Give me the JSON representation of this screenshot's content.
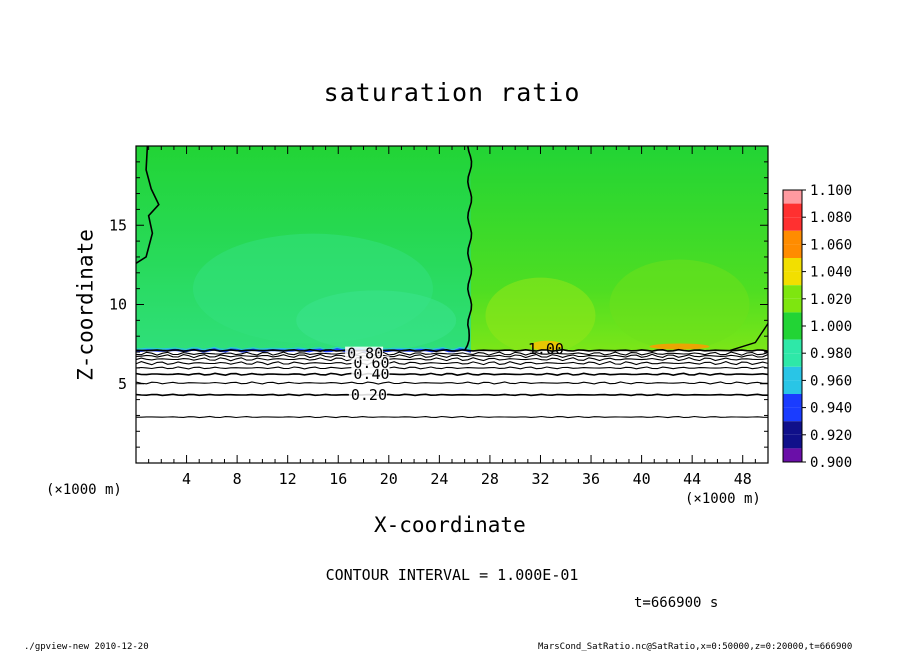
{
  "title": "saturation ratio",
  "xlabel": "X-coordinate",
  "ylabel": "Z-coordinate",
  "x_unit": "(×1000 m)",
  "contour_interval": "CONTOUR INTERVAL = 1.000E-01",
  "time_label": "t=666900 s",
  "footer_left": "./gpview-new   2010-12-20",
  "footer_right": "MarsCond_SatRatio.nc@SatRatio,x=0:50000,z=0:20000,t=666900",
  "colors": {
    "background_field": "#22d435",
    "low_field": "#ffffff",
    "contour_line": "#000000"
  },
  "chart_data": {
    "type": "heatmap",
    "title": "saturation ratio",
    "xlabel": "X-coordinate",
    "ylabel": "Z-coordinate",
    "x_unit": "(×1000 m)",
    "xlim": [
      0,
      50
    ],
    "ylim": [
      0,
      20
    ],
    "x_ticks": [
      4,
      8,
      12,
      16,
      20,
      24,
      28,
      32,
      36,
      40,
      44,
      48
    ],
    "y_ticks": [
      5,
      10,
      15
    ],
    "colorbar": {
      "levels": [
        "0.900",
        "0.920",
        "0.940",
        "0.960",
        "0.980",
        "1.000",
        "1.020",
        "1.040",
        "1.060",
        "1.080",
        "1.100"
      ],
      "colors": [
        "#6a0fa8",
        "#10108a",
        "#1a3cff",
        "#29c5e6",
        "#2ee8a8",
        "#22d435",
        "#7ee60f",
        "#f2df00",
        "#ff8c00",
        "#ff3030",
        "#ff9aa0"
      ]
    },
    "contour_labels": [
      "0.20",
      "0.40",
      "0.60",
      "0.80",
      "1.00"
    ],
    "contour_interval": 0.1,
    "contour_levels_z": [
      {
        "level": 0.1,
        "z": 2.9
      },
      {
        "level": 0.2,
        "z": 4.3
      },
      {
        "level": 0.3,
        "z": 5.05
      },
      {
        "level": 0.4,
        "z": 5.6
      },
      {
        "level": 0.5,
        "z": 6.0
      },
      {
        "level": 0.6,
        "z": 6.3
      },
      {
        "level": 0.7,
        "z": 6.55
      },
      {
        "level": 0.8,
        "z": 6.75
      },
      {
        "level": 0.9,
        "z": 6.9
      }
    ],
    "saturation_boundary_z": 7.1,
    "time": "t=666900 s"
  }
}
